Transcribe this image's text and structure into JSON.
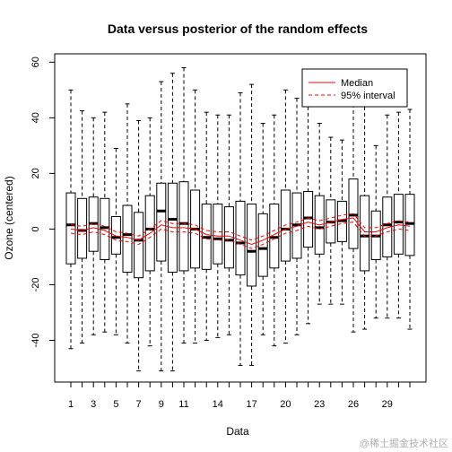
{
  "chart_data": {
    "type": "boxplot",
    "title": "Data versus posterior of the random effects",
    "xlabel": "Data",
    "ylabel": "Ozone (centered)",
    "ylim": [
      -55,
      63
    ],
    "y_ticks": [
      -40,
      -20,
      0,
      20,
      40,
      60
    ],
    "x_tick_labels": [
      "1",
      "3",
      "5",
      "7",
      "9",
      "11",
      "14",
      "17",
      "20",
      "23",
      "26",
      "29"
    ],
    "x_tick_positions": [
      1,
      3,
      5,
      7,
      9,
      11,
      14,
      17,
      20,
      23,
      26,
      29
    ],
    "legend_position": "top-right",
    "legend": [
      {
        "name": "Median",
        "color": "#ff0000",
        "style": "solid"
      },
      {
        "name": "95% interval",
        "color": "#ff0000",
        "style": "dashed"
      }
    ],
    "boxes": [
      {
        "x": 1,
        "min": -43,
        "q1": -12.5,
        "median": 1.5,
        "q3": 13,
        "max": 50
      },
      {
        "x": 2,
        "min": -41,
        "q1": -10.5,
        "median": -0.5,
        "q3": 11,
        "max": 42.5
      },
      {
        "x": 3,
        "min": -38,
        "q1": -8,
        "median": 2,
        "q3": 11.5,
        "max": 40
      },
      {
        "x": 4,
        "min": -37,
        "q1": -11,
        "median": 0.5,
        "q3": 11,
        "max": 42
      },
      {
        "x": 5,
        "min": -38,
        "q1": -9,
        "median": -3,
        "q3": 4.5,
        "max": 29
      },
      {
        "x": 6,
        "min": -41,
        "q1": -15.5,
        "median": -2,
        "q3": 8.5,
        "max": 45
      },
      {
        "x": 7,
        "min": -51,
        "q1": -17.5,
        "median": -4,
        "q3": 6,
        "max": 39
      },
      {
        "x": 8,
        "min": -42,
        "q1": -15,
        "median": 0,
        "q3": 12,
        "max": 40
      },
      {
        "x": 9,
        "min": -51,
        "q1": -11.5,
        "median": 6.5,
        "q3": 16.5,
        "max": 53
      },
      {
        "x": 10,
        "min": -51,
        "q1": -15.5,
        "median": 3.5,
        "q3": 16.5,
        "max": 56
      },
      {
        "x": 11,
        "min": -41,
        "q1": -15,
        "median": 2,
        "q3": 17,
        "max": 58
      },
      {
        "x": 12,
        "min": -41,
        "q1": -14,
        "median": 0,
        "q3": 14,
        "max": 50
      },
      {
        "x": 13,
        "min": -40,
        "q1": -14.5,
        "median": -3,
        "q3": 9,
        "max": 42
      },
      {
        "x": 14,
        "min": -39,
        "q1": -12.5,
        "median": -3.5,
        "q3": 9,
        "max": 41
      },
      {
        "x": 15,
        "min": -38,
        "q1": -14,
        "median": -4,
        "q3": 8,
        "max": 41
      },
      {
        "x": 16,
        "min": -49,
        "q1": -16.5,
        "median": -5,
        "q3": 10,
        "max": 49
      },
      {
        "x": 17,
        "min": -49,
        "q1": -20.5,
        "median": -8,
        "q3": 9,
        "max": 52
      },
      {
        "x": 18,
        "min": -38,
        "q1": -17,
        "median": -7,
        "q3": 5.5,
        "max": 38
      },
      {
        "x": 19,
        "min": -42,
        "q1": -14,
        "median": -3,
        "q3": 9,
        "max": 41
      },
      {
        "x": 20,
        "min": -41,
        "q1": -11.5,
        "median": 0,
        "q3": 14,
        "max": 50
      },
      {
        "x": 21,
        "min": -38,
        "q1": -10.5,
        "median": 1.5,
        "q3": 13,
        "max": 47
      },
      {
        "x": 22,
        "min": -34,
        "q1": -6.5,
        "median": 4,
        "q3": 13.5,
        "max": 44
      },
      {
        "x": 23,
        "min": -27,
        "q1": -9,
        "median": 0.5,
        "q3": 12,
        "max": 38
      },
      {
        "x": 24,
        "min": -27,
        "q1": -5,
        "median": 2.5,
        "q3": 10.5,
        "max": 33
      },
      {
        "x": 25,
        "min": -27,
        "q1": -4.5,
        "median": 3,
        "q3": 10,
        "max": 32
      },
      {
        "x": 26,
        "min": -37,
        "q1": -7,
        "median": 5,
        "q3": 18,
        "max": 45
      },
      {
        "x": 27,
        "min": -36,
        "q1": -15,
        "median": -2.5,
        "q3": 12,
        "max": 44
      },
      {
        "x": 28,
        "min": -32,
        "q1": -11,
        "median": -2.5,
        "q3": 6.5,
        "max": 30
      },
      {
        "x": 29,
        "min": -32,
        "q1": -10,
        "median": 1.5,
        "q3": 11.5,
        "max": 41
      },
      {
        "x": 30,
        "min": -32,
        "q1": -9,
        "median": 2.5,
        "q3": 12.5,
        "max": 42
      },
      {
        "x": 31,
        "min": -36,
        "q1": -9.5,
        "median": 2,
        "q3": 12.5,
        "max": 43
      }
    ],
    "posterior_median": [
      0,
      -0.5,
      0.5,
      -0.5,
      -2.5,
      -3,
      -4,
      -1.5,
      1.5,
      0.5,
      0.5,
      0,
      -2,
      -2.5,
      -2.5,
      -4,
      -5.5,
      -4,
      -2,
      0,
      1,
      2.5,
      1.5,
      2.5,
      3.5,
      4,
      -1,
      -1,
      0.5,
      1.5,
      1
    ],
    "posterior_upper": [
      1.5,
      1,
      2,
      1,
      -1,
      -1.5,
      -2.5,
      0,
      3,
      2,
      2,
      1.5,
      -0.5,
      -1,
      -1,
      -2.5,
      -4,
      -2.5,
      -0.5,
      1.5,
      2.5,
      4,
      3,
      4,
      5,
      5.5,
      0.5,
      0.5,
      2,
      3,
      2.5
    ],
    "posterior_lower": [
      -1.5,
      -2,
      -1,
      -2,
      -4,
      -4.5,
      -5.5,
      -3,
      0,
      -1,
      -1,
      -1.5,
      -3.5,
      -4,
      -4,
      -5.5,
      -7,
      -5.5,
      -3.5,
      -1.5,
      -0.5,
      1,
      0,
      1,
      2,
      2.5,
      -2.5,
      -2.5,
      -1,
      0,
      -0.5
    ]
  },
  "watermark": "@稀土掘金技术社区"
}
